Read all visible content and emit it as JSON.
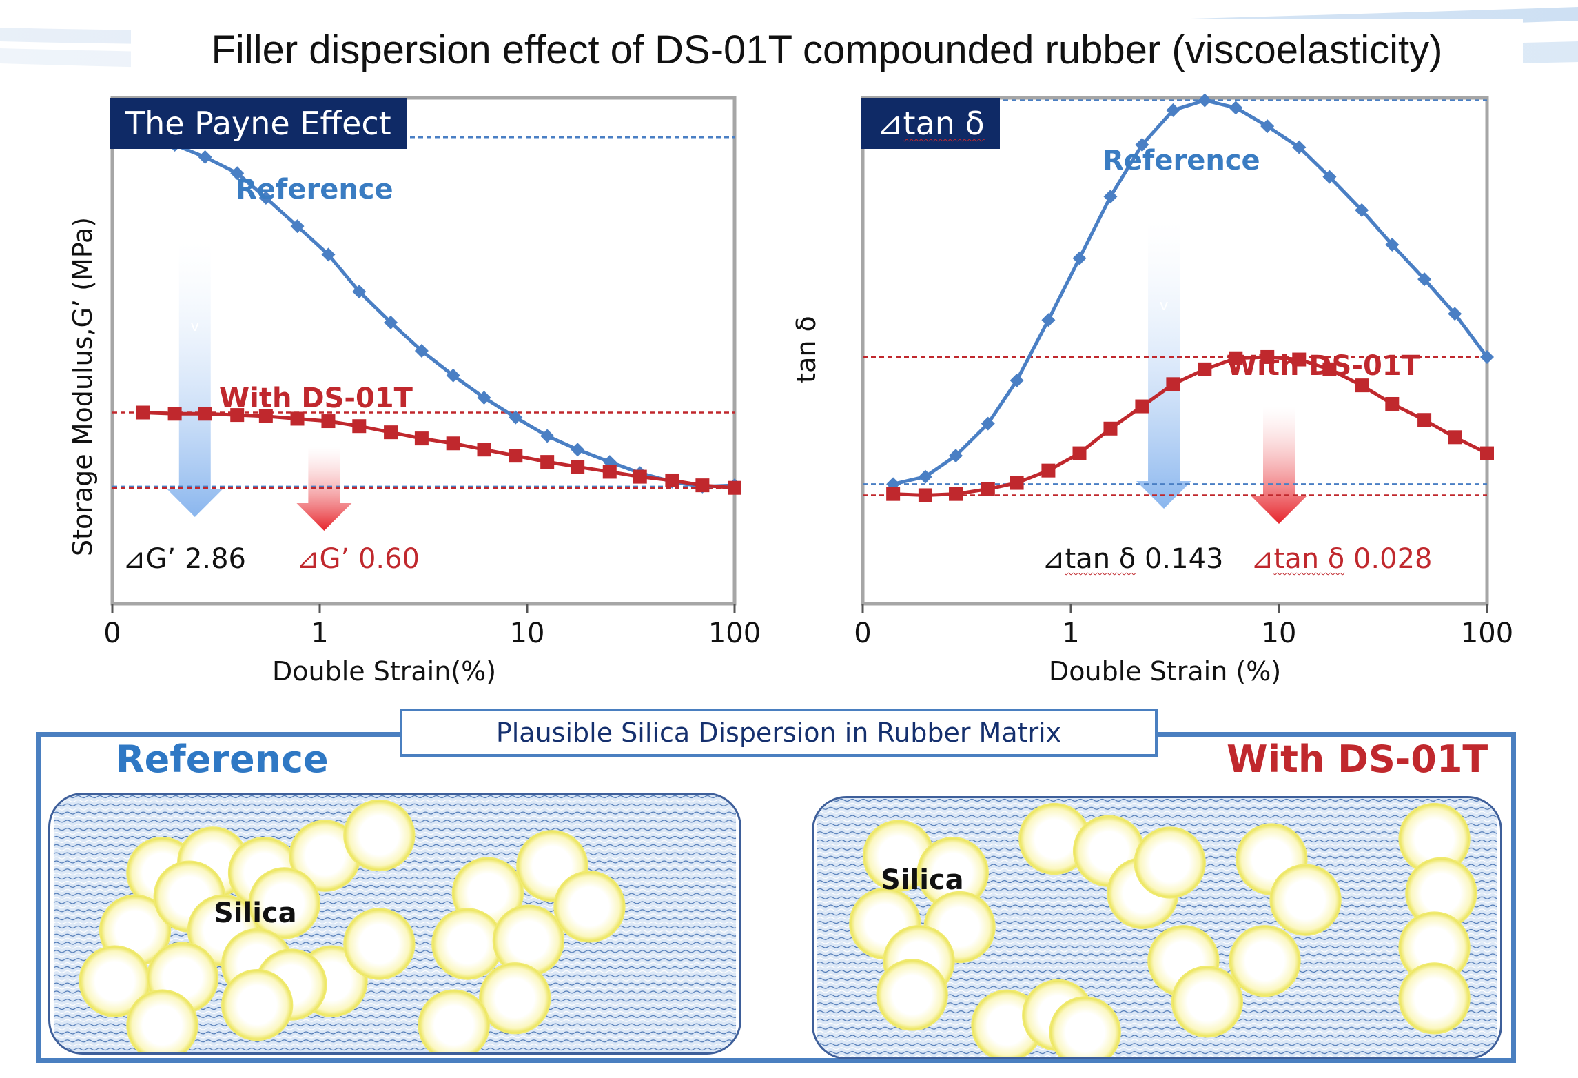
{
  "title": "Filler dispersion effect of DS-01T compounded rubber (viscoelasticity)",
  "colors": {
    "blue": "#4a7fc4",
    "red": "#c0282d",
    "navy": "#0f2a66",
    "frame": "#a6a6a6"
  },
  "left_panel": {
    "badge": "The Payne Effect",
    "ylabel": "Storage Modulus,G’ (MPa)",
    "xlabel": "Double Strain(%)",
    "reference_label": "Reference",
    "ds01t_label": "With DS-01T",
    "delta_ref": "⊿G’ 2.86",
    "delta_ds": "⊿G’ 0.60",
    "arrow_glyph": "v"
  },
  "right_panel": {
    "badge_symbol": "⊿",
    "badge_word": "tan δ",
    "ylabel": "tan δ",
    "xlabel": "Double Strain (%)",
    "reference_label": "Reference",
    "ds01t_label": "With DS-01T",
    "delta_ref_prefix": "⊿",
    "delta_ref_word": "tan δ",
    "delta_ref_value": "0.143",
    "delta_ds_prefix": "⊿",
    "delta_ds_word": "tan δ",
    "delta_ds_value": "0.028",
    "arrow_glyph": "v"
  },
  "chart_data": [
    {
      "type": "line",
      "title": "The Payne Effect",
      "xlabel": "Double Strain(%)",
      "ylabel": "Storage Modulus,G’ (MPa)",
      "xscale": "log",
      "xticks": [
        "0",
        "1",
        "10",
        "100"
      ],
      "xlim": [
        0.1,
        100
      ],
      "ylim": [
        0,
        4.1
      ],
      "grid": false,
      "series": [
        {
          "name": "Reference",
          "color": "#4a7fc4",
          "marker": "diamond",
          "x": [
            0.14,
            0.2,
            0.28,
            0.4,
            0.55,
            0.78,
            1.1,
            1.55,
            2.2,
            3.1,
            4.4,
            6.2,
            8.8,
            12.5,
            17.5,
            25,
            35,
            50,
            70,
            100
          ],
          "y": [
            3.78,
            3.72,
            3.62,
            3.49,
            3.29,
            3.06,
            2.83,
            2.53,
            2.28,
            2.05,
            1.85,
            1.67,
            1.51,
            1.36,
            1.25,
            1.15,
            1.06,
            0.99,
            0.95,
            0.96
          ]
        },
        {
          "name": "With DS-01T",
          "color": "#c0282d",
          "marker": "square",
          "x": [
            0.14,
            0.2,
            0.28,
            0.4,
            0.55,
            0.78,
            1.1,
            1.55,
            2.2,
            3.1,
            4.4,
            6.2,
            8.8,
            12.5,
            17.5,
            25,
            35,
            50,
            70,
            100
          ],
          "y": [
            1.55,
            1.54,
            1.54,
            1.53,
            1.52,
            1.5,
            1.48,
            1.44,
            1.39,
            1.34,
            1.3,
            1.25,
            1.2,
            1.15,
            1.11,
            1.07,
            1.03,
            1.0,
            0.96,
            0.94
          ]
        }
      ],
      "annotations": [
        "Reference",
        "With DS-01T",
        "⊿G’ 2.86",
        "⊿G’ 0.60"
      ]
    },
    {
      "type": "line",
      "title": "⊿tan δ",
      "xlabel": "Double Strain (%)",
      "ylabel": "tan δ",
      "xscale": "log",
      "xticks": [
        "0",
        "1",
        "10",
        "100"
      ],
      "xlim": [
        0.1,
        100
      ],
      "ylim": [
        0,
        0.41
      ],
      "grid": false,
      "series": [
        {
          "name": "Reference",
          "color": "#4a7fc4",
          "marker": "diamond",
          "x": [
            0.14,
            0.2,
            0.28,
            0.4,
            0.55,
            0.78,
            1.1,
            1.55,
            2.2,
            3.1,
            4.4,
            6.2,
            8.8,
            12.5,
            17.5,
            25,
            35,
            50,
            70,
            100
          ],
          "y": [
            0.097,
            0.103,
            0.12,
            0.146,
            0.181,
            0.23,
            0.28,
            0.33,
            0.372,
            0.4,
            0.408,
            0.402,
            0.387,
            0.37,
            0.346,
            0.319,
            0.291,
            0.263,
            0.235,
            0.2
          ]
        },
        {
          "name": "With DS-01T",
          "color": "#c0282d",
          "marker": "square",
          "x": [
            0.14,
            0.2,
            0.28,
            0.4,
            0.55,
            0.78,
            1.1,
            1.55,
            2.2,
            3.1,
            4.4,
            6.2,
            8.8,
            12.5,
            17.5,
            25,
            35,
            50,
            70,
            100
          ],
          "y": [
            0.089,
            0.088,
            0.089,
            0.093,
            0.098,
            0.108,
            0.122,
            0.142,
            0.16,
            0.178,
            0.19,
            0.199,
            0.2,
            0.198,
            0.19,
            0.177,
            0.162,
            0.149,
            0.135,
            0.122
          ]
        }
      ],
      "annotations": [
        "Reference",
        "With DS-01T",
        "⊿tan δ 0.143",
        "⊿tan δ 0.028"
      ]
    }
  ],
  "bottom": {
    "heading": "Plausible Silica Dispersion in Rubber Matrix",
    "left_title": "Reference",
    "right_title": "With DS-01T",
    "silica_label_left": "Silica",
    "silica_label_right": "Silica"
  }
}
